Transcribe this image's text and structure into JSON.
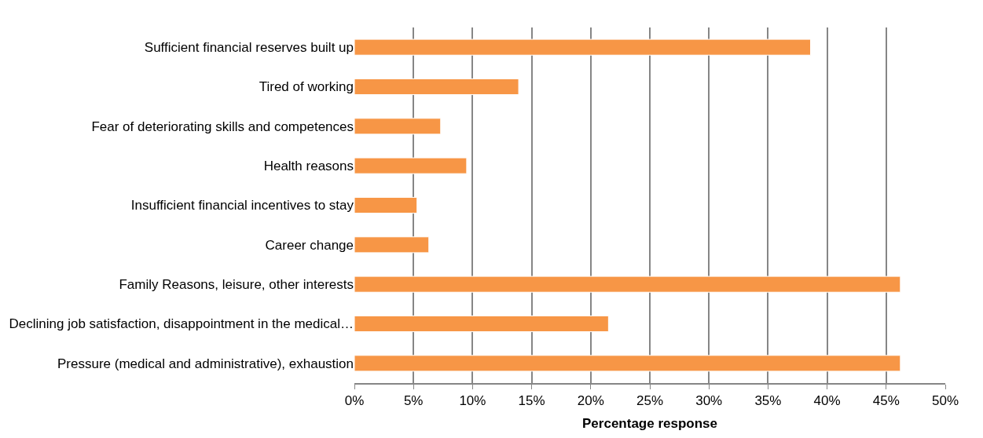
{
  "chart_data": {
    "type": "bar",
    "orientation": "horizontal",
    "xlabel": "Percentage response",
    "categories": [
      "Sufficient financial reserves built up",
      "Tired of working",
      "Fear of deteriorating skills and competences",
      "Health reasons",
      "Insufficient financial incentives to stay",
      "Career change",
      "Family Reasons, leisure, other interests",
      "Declining job satisfaction, disappointment in the medical…",
      "Pressure (medical and administrative), exhaustion"
    ],
    "values": [
      38.6,
      13.9,
      7.3,
      9.5,
      5.3,
      6.3,
      46.2,
      21.5,
      46.2
    ],
    "color": "#f79646",
    "xlim": [
      0,
      50
    ],
    "xticks": [
      {
        "value": 0,
        "label": "0%"
      },
      {
        "value": 5,
        "label": "5%"
      },
      {
        "value": 10,
        "label": "10%"
      },
      {
        "value": 15,
        "label": "15%"
      },
      {
        "value": 20,
        "label": "20%"
      },
      {
        "value": 25,
        "label": "25%"
      },
      {
        "value": 30,
        "label": "30%"
      },
      {
        "value": 35,
        "label": "35%"
      },
      {
        "value": 40,
        "label": "40%"
      },
      {
        "value": 45,
        "label": "45%"
      },
      {
        "value": 50,
        "label": "50%"
      }
    ],
    "grid": "x"
  }
}
